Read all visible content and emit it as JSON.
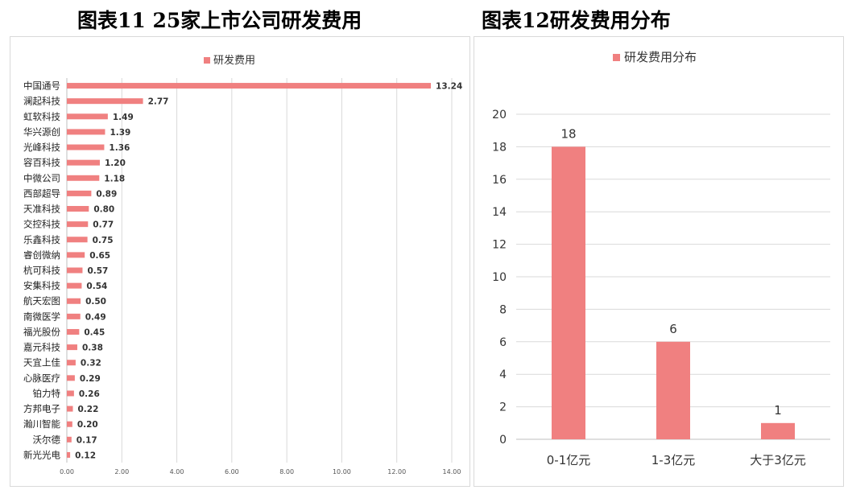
{
  "titles": {
    "left": "图表11 25家上市公司研发费用",
    "right": "图表12研发费用分布"
  },
  "colors": {
    "bar": "#f08080",
    "grid": "#d9d9d9",
    "text": "#333333"
  },
  "chart_data": [
    {
      "type": "bar",
      "orientation": "horizontal",
      "legend": "研发费用",
      "legend_position": "top",
      "categories": [
        "中国通号",
        "澜起科技",
        "虹软科技",
        "华兴源创",
        "光峰科技",
        "容百科技",
        "中微公司",
        "西部超导",
        "天准科技",
        "交控科技",
        "乐鑫科技",
        "睿创微纳",
        "杭可科技",
        "安集科技",
        "航天宏图",
        "南微医学",
        "福光股份",
        "嘉元科技",
        "天宜上佳",
        "心脉医疗",
        "铂力特",
        "方邦电子",
        "瀚川智能",
        "沃尔德",
        "新光光电"
      ],
      "values": [
        13.24,
        2.77,
        1.49,
        1.39,
        1.36,
        1.2,
        1.18,
        0.89,
        0.8,
        0.77,
        0.75,
        0.65,
        0.57,
        0.54,
        0.5,
        0.49,
        0.45,
        0.38,
        0.32,
        0.29,
        0.26,
        0.22,
        0.2,
        0.17,
        0.12
      ],
      "value_labels": [
        "13.24",
        "2.77",
        "1.49",
        "1.39",
        "1.36",
        "1.20",
        "1.18",
        "0.89",
        "0.80",
        "0.77",
        "0.75",
        "0.65",
        "0.57",
        "0.54",
        "0.50",
        "0.49",
        "0.45",
        "0.38",
        "0.32",
        "0.29",
        "0.26",
        "0.22",
        "0.20",
        "0.17",
        "0.12"
      ],
      "x_ticks": [
        "0.00",
        "2.00",
        "4.00",
        "6.00",
        "8.00",
        "10.00",
        "12.00",
        "14.00"
      ],
      "xlim": [
        0,
        14
      ],
      "grid": true
    },
    {
      "type": "bar",
      "legend": "研发费用分布",
      "legend_position": "top",
      "categories": [
        "0-1亿元",
        "1-3亿元",
        "大于3亿元"
      ],
      "values": [
        18,
        6,
        1
      ],
      "value_labels": [
        "18",
        "6",
        "1"
      ],
      "y_ticks": [
        "0",
        "2",
        "4",
        "6",
        "8",
        "10",
        "12",
        "14",
        "16",
        "18",
        "20"
      ],
      "ylim": [
        0,
        20
      ],
      "grid": true
    }
  ]
}
